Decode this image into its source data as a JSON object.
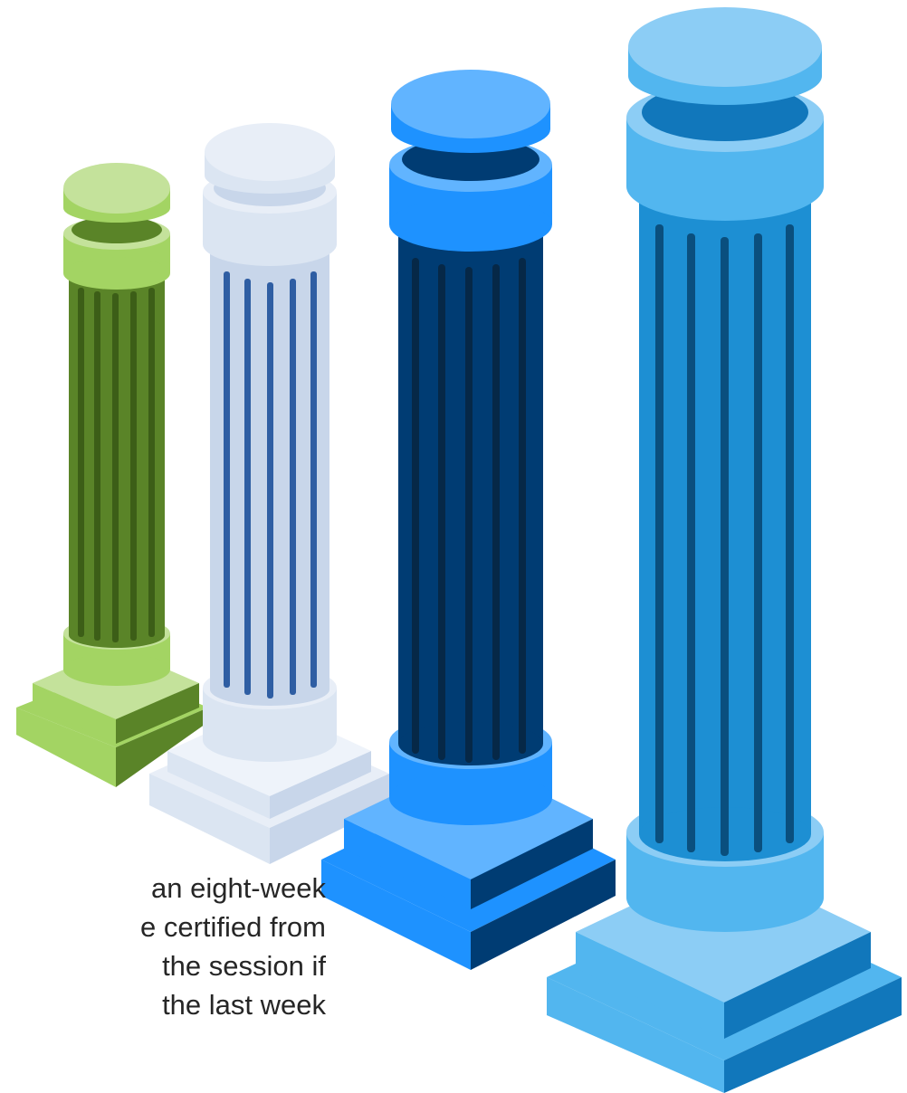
{
  "caption": {
    "lines": [
      "an eight-week",
      "e certified from",
      "the session if",
      "the last week"
    ]
  },
  "pillars": [
    {
      "name": "green-pillar",
      "colors": {
        "top": "#c4e29b",
        "light": "#a3d463",
        "mid": "#7cab3c",
        "dark": "#5a8428",
        "groove": "#3c5e17"
      }
    },
    {
      "name": "white-pillar",
      "colors": {
        "top": "#e8eef7",
        "light": "#dbe5f2",
        "mid": "#c8d6ea",
        "dark": "#a8bedd",
        "groove": "#2f5ea3"
      }
    },
    {
      "name": "blue-pillar",
      "colors": {
        "top": "#61b4ff",
        "light": "#1e92ff",
        "mid": "#0f6fcf",
        "dark": "#003c73",
        "groove": "#062847"
      }
    },
    {
      "name": "light-blue-pillar",
      "colors": {
        "top": "#8ccdf5",
        "light": "#52b6ef",
        "mid": "#1d8fd3",
        "dark": "#1177bb",
        "groove": "#0a4f7e"
      }
    }
  ]
}
